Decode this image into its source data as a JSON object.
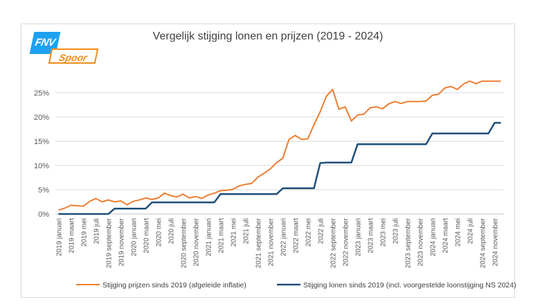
{
  "logo": {
    "brand": "FNV",
    "sub": "Spoor",
    "brand_color": "#1da1f2",
    "sub_color": "#f08c1a"
  },
  "chart_data": {
    "type": "line",
    "title": "Vergelijk stijging lonen en prijzen (2019 - 2024)",
    "xlabel": "",
    "ylabel": "",
    "ylim": [
      0,
      30
    ],
    "yticks": [
      0,
      5,
      10,
      15,
      20,
      25
    ],
    "ytick_labels": [
      "0%",
      "5%",
      "10%",
      "15%",
      "20%",
      "25%"
    ],
    "grid": true,
    "legend": "bottom",
    "tick_labels": [
      "2019 januari",
      "2019 maart",
      "2019 mei",
      "2019 juli",
      "2019 september",
      "2019 november",
      "2020 januari",
      "2020 maart",
      "2020 mei",
      "2020 juli",
      "2020 september",
      "2020 november",
      "2021 januari",
      "2021 maart",
      "2021 mei",
      "2021 juli",
      "2021 september",
      "2021 november",
      "2022 januari",
      "2022 maart",
      "2022 mei",
      "2022 juli",
      "2022 september",
      "2022 november",
      "2023 januari",
      "2023 maart",
      "2023 mei",
      "2023 juli",
      "2023 september",
      "2023 november",
      "2024 januari",
      "2024 maart",
      "2024 mei",
      "2024 juli",
      "2024 september",
      "2024 november"
    ],
    "months_per_tick": 2,
    "series": [
      {
        "name": "Stijging prijzen sinds 2019 (afgeleide inflatie)",
        "color": "#ed7d31",
        "values": [
          0.8,
          1.2,
          1.8,
          1.7,
          1.6,
          2.6,
          3.2,
          2.5,
          2.9,
          2.5,
          2.7,
          1.9,
          2.6,
          2.9,
          3.3,
          3.0,
          3.3,
          4.3,
          3.8,
          3.5,
          4.1,
          3.3,
          3.6,
          3.2,
          3.9,
          4.3,
          4.8,
          4.9,
          5.1,
          5.8,
          6.1,
          6.3,
          7.6,
          8.4,
          9.3,
          10.6,
          11.5,
          15.4,
          16.2,
          15.4,
          15.5,
          18.4,
          21.1,
          24.3,
          25.7,
          21.6,
          22.1,
          19.2,
          20.4,
          20.6,
          21.9,
          22.1,
          21.7,
          22.7,
          23.2,
          22.8,
          23.2,
          23.2,
          23.2,
          23.3,
          24.5,
          24.7,
          26.0,
          26.3,
          25.7,
          26.8,
          27.4,
          26.9,
          27.4,
          27.4,
          27.4,
          27.4
        ]
      },
      {
        "name": "Stijging lonen sinds 2019 (incl. voorgestelde loonstijging NS 2024)",
        "color": "#1f4e79",
        "values": [
          0,
          0,
          0,
          0,
          0,
          0,
          0,
          0,
          0,
          1.1,
          1.1,
          1.1,
          1.1,
          1.1,
          1.1,
          2.4,
          2.4,
          2.4,
          2.4,
          2.4,
          2.4,
          2.4,
          2.4,
          2.4,
          2.4,
          2.4,
          4.1,
          4.1,
          4.1,
          4.1,
          4.1,
          4.1,
          4.1,
          4.1,
          4.1,
          4.1,
          5.3,
          5.3,
          5.3,
          5.3,
          5.3,
          5.3,
          10.5,
          10.6,
          10.6,
          10.6,
          10.6,
          10.6,
          14.4,
          14.4,
          14.4,
          14.4,
          14.4,
          14.4,
          14.4,
          14.4,
          14.4,
          14.4,
          14.4,
          14.4,
          16.6,
          16.6,
          16.6,
          16.6,
          16.6,
          16.6,
          16.6,
          16.6,
          16.6,
          16.6,
          18.8,
          18.8
        ]
      }
    ]
  }
}
